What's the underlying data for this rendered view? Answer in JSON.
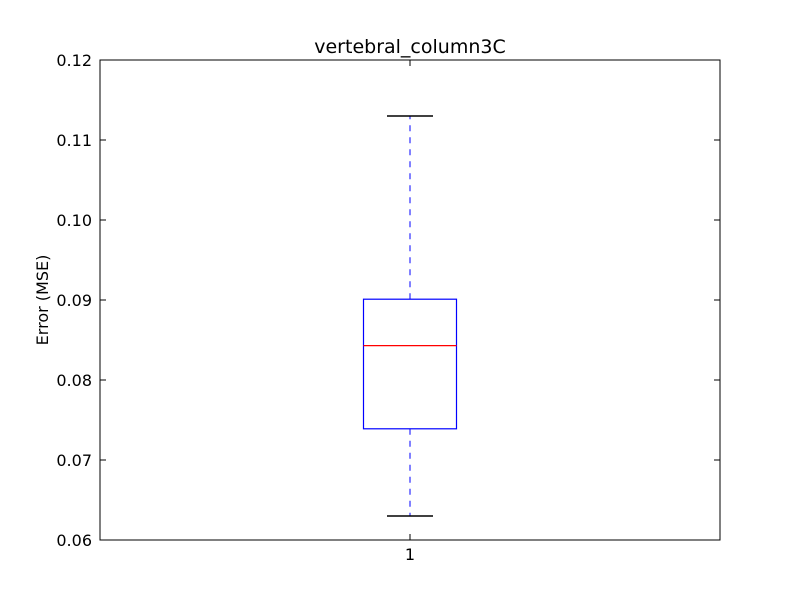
{
  "chart_data": {
    "type": "box",
    "title": "vertebral_column3C",
    "xlabel": "",
    "ylabel": "Error (MSE)",
    "ylim": [
      0.06,
      0.12
    ],
    "yticks": [
      "0.06",
      "0.07",
      "0.08",
      "0.09",
      "0.10",
      "0.11",
      "0.12"
    ],
    "categories": [
      "1"
    ],
    "boxes": [
      {
        "category": "1",
        "whisker_low": 0.063,
        "q1": 0.0739,
        "median": 0.0843,
        "q3": 0.0901,
        "whisker_high": 0.113
      }
    ],
    "grid": false,
    "colors": {
      "box": "#0000ff",
      "median": "#ff0000",
      "whisker": "#0000ff",
      "cap": "#000000"
    }
  }
}
